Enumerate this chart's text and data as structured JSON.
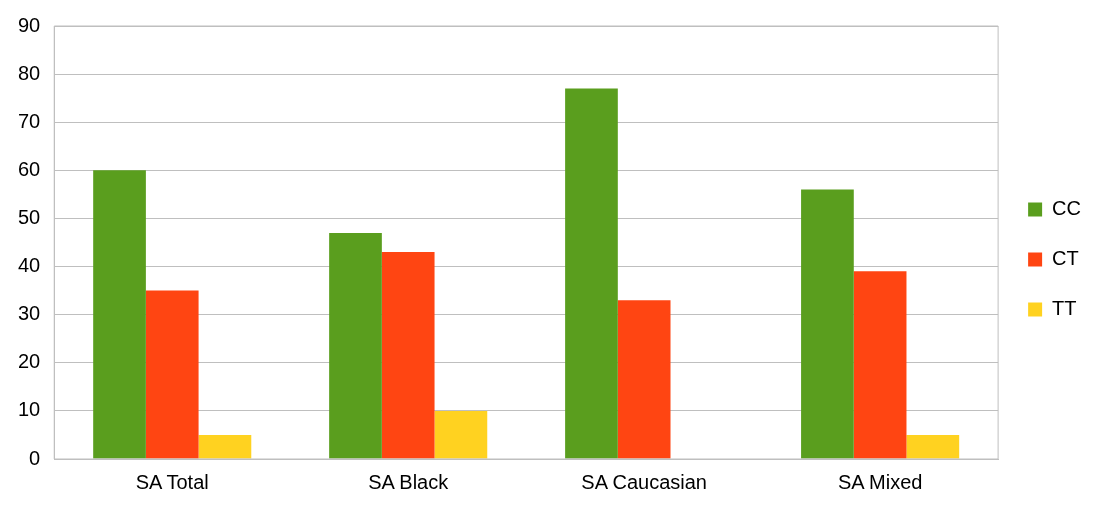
{
  "chart_data": {
    "type": "bar",
    "categories": [
      "SA Total",
      "SA Black",
      "SA Caucasian",
      "SA Mixed"
    ],
    "series": [
      {
        "name": "CC",
        "color": "#5a9e1e",
        "values": [
          60,
          47,
          77,
          56
        ]
      },
      {
        "name": "CT",
        "color": "#ff4512",
        "values": [
          35,
          43,
          33,
          39
        ]
      },
      {
        "name": "TT",
        "color": "#ffd220",
        "values": [
          5,
          10,
          0,
          5
        ]
      }
    ],
    "ylim": [
      0,
      90
    ],
    "yticks": [
      0,
      10,
      20,
      30,
      40,
      50,
      60,
      70,
      80,
      90
    ],
    "grid": "y",
    "legend": "right"
  }
}
